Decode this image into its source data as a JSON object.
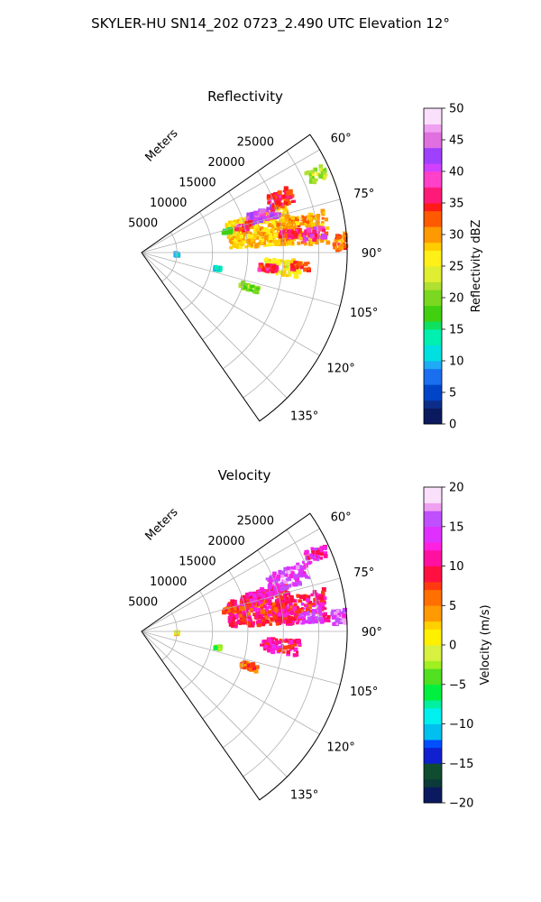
{
  "figure": {
    "suptitle": "SKYLER-HU  SN14_202  0723_2.490 UTC Elevation 12°"
  },
  "chart_data": [
    {
      "type": "heatmap",
      "projection": "polar-sector",
      "title": "Reflectivity",
      "radial_label": "Meters",
      "theta_ticks": [
        "60°",
        "75°",
        "90°",
        "105°",
        "120°",
        "135°"
      ],
      "theta_tick_values": [
        60,
        75,
        90,
        105,
        120,
        135
      ],
      "theta_range_deg": [
        55,
        145
      ],
      "r_ticks": [
        "5000",
        "10000",
        "15000",
        "20000",
        "25000"
      ],
      "r_tick_values": [
        5000,
        10000,
        15000,
        20000,
        25000
      ],
      "r_max": 29000,
      "grid": true,
      "colorbar": {
        "label": "Reflectivity dBZ",
        "min": 0,
        "max": 50,
        "ticks": [
          "0",
          "5",
          "10",
          "15",
          "20",
          "25",
          "30",
          "35",
          "40",
          "45",
          "50"
        ],
        "tick_values": [
          0,
          5,
          10,
          15,
          20,
          25,
          30,
          35,
          40,
          45,
          50
        ],
        "levels": 40,
        "colors": [
          "#0b1a5e",
          "#0c2e8a",
          "#0045c8",
          "#1a6ff0",
          "#1faaf5",
          "#00e0e0",
          "#00f0b0",
          "#10e060",
          "#40d010",
          "#7ad820",
          "#b0e030",
          "#dfee30",
          "#fff018",
          "#ffcc00",
          "#ff9900",
          "#ff5a00",
          "#ff1a1a",
          "#ff1a78",
          "#ff40c8",
          "#d040ff",
          "#a040ff",
          "#e070e0",
          "#f0a0f0",
          "#fbe0fb"
        ]
      },
      "cells": [
        {
          "theta": 79,
          "r": 17000,
          "dtheta": 16,
          "dr": 9000,
          "value": 28
        },
        {
          "theta": 73,
          "r": 18000,
          "dtheta": 5,
          "dr": 4500,
          "value": 42
        },
        {
          "theta": 69,
          "r": 21000,
          "dtheta": 6,
          "dr": 3500,
          "value": 35
        },
        {
          "theta": 76,
          "r": 15000,
          "dtheta": 4,
          "dr": 2500,
          "value": 36
        },
        {
          "theta": 82,
          "r": 23000,
          "dtheta": 10,
          "dr": 7000,
          "value": 30
        },
        {
          "theta": 83,
          "r": 21000,
          "dtheta": 3,
          "dr": 2500,
          "value": 36
        },
        {
          "theta": 84,
          "r": 24500,
          "dtheta": 4,
          "dr": 3000,
          "value": 38
        },
        {
          "theta": 87,
          "r": 28000,
          "dtheta": 5,
          "dr": 2000,
          "value": 32
        },
        {
          "theta": 96,
          "r": 20000,
          "dtheta": 6,
          "dr": 5000,
          "value": 26
        },
        {
          "theta": 97,
          "r": 18000,
          "dtheta": 3,
          "dr": 2500,
          "value": 36
        },
        {
          "theta": 95,
          "r": 22500,
          "dtheta": 3,
          "dr": 2500,
          "value": 34
        },
        {
          "theta": 66,
          "r": 27000,
          "dtheta": 4,
          "dr": 3000,
          "value": 22
        },
        {
          "theta": 76,
          "r": 12500,
          "dtheta": 2,
          "dr": 1200,
          "value": 16
        },
        {
          "theta": 108,
          "r": 16000,
          "dtheta": 3,
          "dr": 2500,
          "value": 20
        },
        {
          "theta": 102,
          "r": 11000,
          "dtheta": 2,
          "dr": 800,
          "value": 12
        },
        {
          "theta": 93,
          "r": 5000,
          "dtheta": 4,
          "dr": 400,
          "value": 11
        }
      ]
    },
    {
      "type": "heatmap",
      "projection": "polar-sector",
      "title": "Velocity",
      "radial_label": "Meters",
      "theta_ticks": [
        "60°",
        "75°",
        "90°",
        "105°",
        "120°",
        "135°"
      ],
      "theta_tick_values": [
        60,
        75,
        90,
        105,
        120,
        135
      ],
      "theta_range_deg": [
        55,
        145
      ],
      "r_ticks": [
        "5000",
        "10000",
        "15000",
        "20000",
        "25000"
      ],
      "r_tick_values": [
        5000,
        10000,
        15000,
        20000,
        25000
      ],
      "r_max": 29000,
      "grid": true,
      "colorbar": {
        "label": "Velocity (m/s)",
        "min": -20,
        "max": 20,
        "ticks": [
          "−20",
          "−15",
          "−10",
          "−5",
          "0",
          "5",
          "10",
          "15",
          "20"
        ],
        "tick_values": [
          -20,
          -15,
          -10,
          -5,
          0,
          5,
          10,
          15,
          20
        ],
        "levels": 40,
        "colors": [
          "#0b1a5e",
          "#0c3a3a",
          "#104c30",
          "#1020d0",
          "#0050ff",
          "#00c0f0",
          "#00f0f0",
          "#00f0a0",
          "#00f040",
          "#50e020",
          "#a0f020",
          "#d8f040",
          "#fff000",
          "#ffd000",
          "#ff9a00",
          "#ff7000",
          "#ff3a10",
          "#ff1040",
          "#ff10a0",
          "#ff20e0",
          "#e030ff",
          "#c050ff",
          "#f0a0f0",
          "#fbe0fb"
        ]
      },
      "cells": [
        {
          "theta": 79,
          "r": 17000,
          "dtheta": 16,
          "dr": 9000,
          "value": 9
        },
        {
          "theta": 70,
          "r": 22000,
          "dtheta": 7,
          "dr": 6000,
          "value": 15
        },
        {
          "theta": 73,
          "r": 18000,
          "dtheta": 5,
          "dr": 4500,
          "value": 12
        },
        {
          "theta": 82,
          "r": 23000,
          "dtheta": 10,
          "dr": 7000,
          "value": 10
        },
        {
          "theta": 85,
          "r": 24000,
          "dtheta": 4,
          "dr": 3000,
          "value": 15
        },
        {
          "theta": 86,
          "r": 28000,
          "dtheta": 4,
          "dr": 2000,
          "value": 16
        },
        {
          "theta": 96,
          "r": 20000,
          "dtheta": 6,
          "dr": 5000,
          "value": 10
        },
        {
          "theta": 96,
          "r": 18000,
          "dtheta": 3,
          "dr": 2500,
          "value": 12
        },
        {
          "theta": 108,
          "r": 16000,
          "dtheta": 3,
          "dr": 2500,
          "value": 6
        },
        {
          "theta": 76,
          "r": 12500,
          "dtheta": 2,
          "dr": 1200,
          "value": 8
        },
        {
          "theta": 66,
          "r": 27000,
          "dtheta": 4,
          "dr": 3000,
          "value": 13
        },
        {
          "theta": 102,
          "r": 11000,
          "dtheta": 2,
          "dr": 800,
          "value": -4
        },
        {
          "theta": 93,
          "r": 5000,
          "dtheta": 4,
          "dr": 400,
          "value": 1
        }
      ]
    }
  ]
}
